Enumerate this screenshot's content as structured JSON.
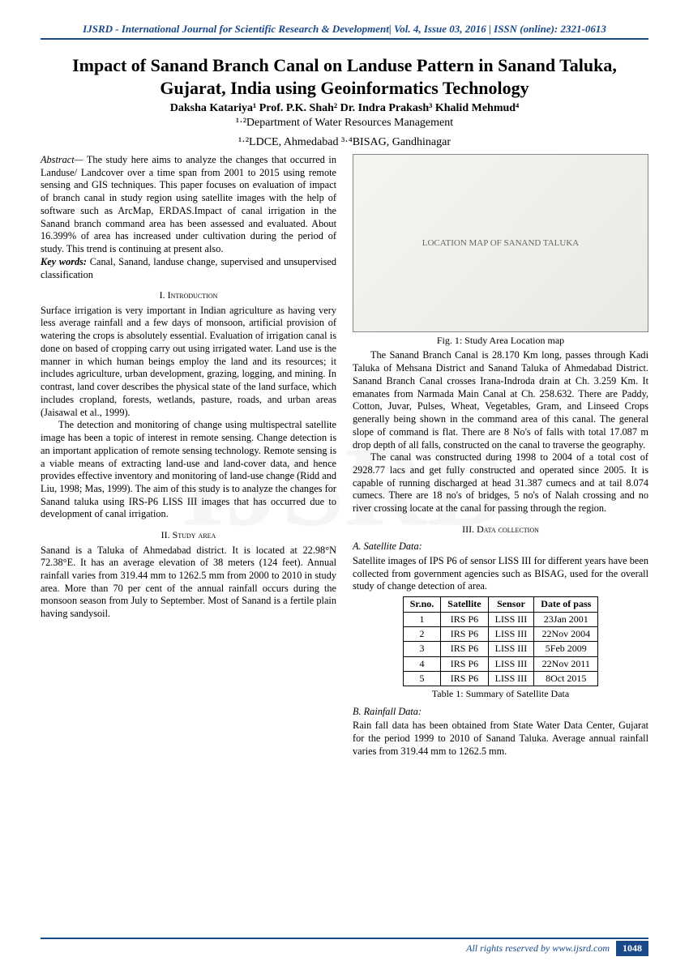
{
  "header": {
    "journal": "IJSRD - International Journal for Scientific Research & Development| Vol. 4, Issue 03, 2016 | ISSN (online): 2321-0613"
  },
  "title": "Impact of Sanand Branch Canal on Landuse Pattern in Sanand Taluka, Gujarat, India using Geoinformatics Technology",
  "authors": "Daksha Katariya¹ Prof. P.K. Shah² Dr. Indra Prakash³ Khalid Mehmud⁴",
  "affil1": "¹·²Department of Water Resources Management",
  "affil2": "¹·²LDCE, Ahmedabad ³·⁴BISAG, Gandhinagar",
  "abstract": {
    "label": "Abstract—",
    "text": " The study here aims to analyze the changes that occurred in Landuse/ Landcover over a time span from 2001 to 2015 using remote sensing and GIS techniques. This paper focuses on evaluation of impact of branch canal in study region using satellite images with the help of software such as ArcMap, ERDAS.Impact of canal irrigation in the Sanand branch command area has been assessed and evaluated. About 16.399% of area has increased under cultivation during the period of study. This trend is continuing at present also."
  },
  "keywords": {
    "label": "Key words:",
    "text": " Canal, Sanand, landuse change, supervised and unsupervised classification"
  },
  "sec1": {
    "heading": "I.    Introduction",
    "p1": "Surface irrigation is very important in Indian agriculture as having very less average rainfall and a few days of monsoon, artificial provision of watering the crops is absolutely essential. Evaluation of irrigation canal is done on based of cropping carry out using irrigated water. Land use is the manner in which human beings employ the land and its resources; it includes agriculture, urban development, grazing, logging, and mining. In contrast, land cover describes the physical state of the land surface, which includes cropland, forests, wetlands, pasture, roads, and urban areas (Jaisawal et al., 1999).",
    "p2": "The detection and monitoring of change using multispectral satellite image has been a topic of interest in remote sensing. Change detection is an important application of remote sensing technology. Remote sensing is a viable means of extracting land-use and land-cover data, and hence provides effective inventory and monitoring of land-use change (Ridd and Liu, 1998; Mas, 1999). The aim of this study is to analyze the changes for Sanand taluka using IRS-P6 LISS III images that has occurred due to development of canal irrigation."
  },
  "sec2": {
    "heading": "II.    Study area",
    "p1": "Sanand is a Taluka of Ahmedabad district. It is located at 22.98°N 72.38°E. It has an average elevation of 38 meters (124 feet). Annual rainfall varies from 319.44 mm to 1262.5 mm from 2000 to 2010 in study area. More than 70 per cent of the annual rainfall occurs during the monsoon season from July to September. Most of Sanand is a fertile plain having sandysoil."
  },
  "fig1": {
    "placeholder": "LOCATION MAP OF SANAND TALUKA",
    "caption": "Fig. 1: Study Area Location map",
    "p1": "The Sanand Branch Canal is 28.170 Km long, passes through Kadi Taluka of Mehsana District and Sanand Taluka of Ahmedabad District. Sanand Branch Canal crosses Irana-Indroda drain at Ch. 3.259 Km. It emanates from Narmada Main Canal at Ch. 258.632. There are Paddy, Cotton, Juvar, Pulses, Wheat, Vegetables, Gram, and Linseed Crops generally being shown in the command area of this canal. The general slope of command is flat. There are 8 No's of falls with total 17.087 m drop depth of all falls, constructed on the canal to traverse the geography.",
    "p2": "The canal was constructed during 1998 to 2004 of a total cost of 2928.77 lacs and get fully constructed and operated since 2005. It is capable of running discharged at head 31.387 cumecs and at tail 8.074 cumecs. There are 18 no's of bridges, 5 no's of Nalah crossing and no river crossing locate at the canal for passing through the region."
  },
  "sec3": {
    "heading": "III.    Data collection",
    "subA": "A.   Satellite Data:",
    "pA": "Satellite images of IPS P6 of sensor LISS III for different years have been collected from government agencies such as BISAG, used for the overall study of change detection of area.",
    "table": {
      "headers": [
        "Sr.no.",
        "Satellite",
        "Sensor",
        "Date of pass"
      ],
      "rows": [
        [
          "1",
          "IRS P6",
          "LISS III",
          "23Jan 2001"
        ],
        [
          "2",
          "IRS P6",
          "LISS III",
          "22Nov 2004"
        ],
        [
          "3",
          "IRS P6",
          "LISS III",
          "5Feb 2009"
        ],
        [
          "4",
          "IRS P6",
          "LISS III",
          "22Nov 2011"
        ],
        [
          "5",
          "IRS P6",
          "LISS III",
          "8Oct 2015"
        ]
      ],
      "caption": "Table 1: Summary of Satellite Data"
    },
    "subB": "B.   Rainfall Data:",
    "pB": "Rain fall data has been obtained from State Water Data Center, Gujarat for the period 1999 to 2010 of Sanand Taluka. Average annual rainfall varies from 319.44 mm to 1262.5 mm."
  },
  "footer": {
    "text": "All rights reserved by www.ijsrd.com",
    "page": "1048"
  }
}
